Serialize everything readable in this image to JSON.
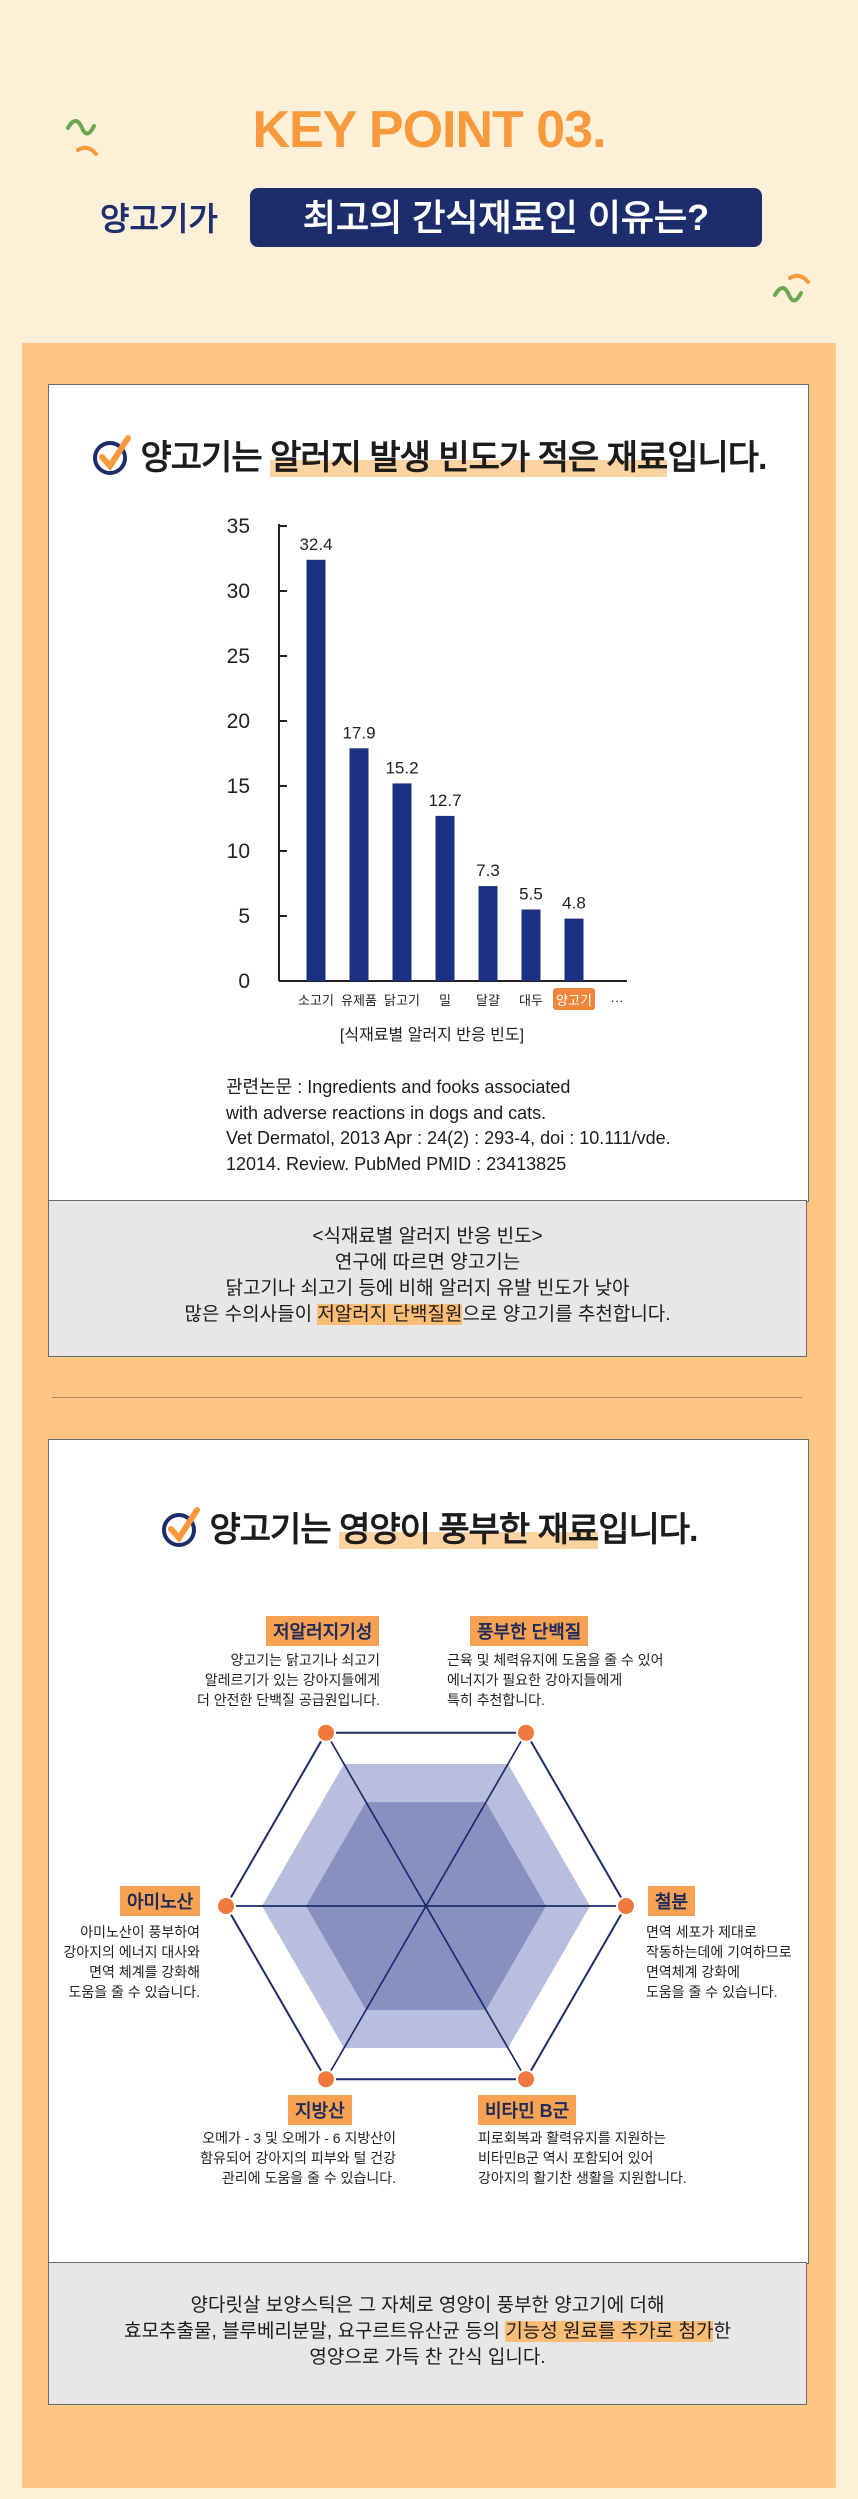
{
  "header": {
    "kicker": "KEY POINT 03.",
    "title_lead": "양고기가",
    "title_box": "최고의 간식재료인 이유는?"
  },
  "section1": {
    "title": [
      {
        "text": "양고기는 "
      },
      {
        "text": "알러지 발생 빈도가 적은 재료",
        "highlight": true
      },
      {
        "text": "입니다."
      }
    ],
    "reference": [
      "관련논문 : Ingredients and fooks associated",
      "with adverse reactions in dogs and cats.",
      "Vet Dermatol, 2013 Apr : 24(2) : 293-4, doi : 10.111/vde.",
      "12014. Review. PubMed PMID : 23413825"
    ],
    "summary": [
      [
        {
          "text": "<식재료별 알러지 반응 빈도>"
        }
      ],
      [
        {
          "text": "연구에 따르면 양고기는"
        }
      ],
      [
        {
          "text": "닭고기나 쇠고기 등에 비해 알러지 유발 빈도가 낮아"
        }
      ],
      [
        {
          "text": "많은 수의사들이 "
        },
        {
          "text": "저알러지 단백질원",
          "highlight": true
        },
        {
          "text": "으로 양고기를 추천합니다."
        }
      ]
    ]
  },
  "chart_data": {
    "type": "bar",
    "categories": [
      "소고기",
      "유제품",
      "닭고기",
      "밀",
      "달걀",
      "대두",
      "양고기",
      "···"
    ],
    "values": [
      32.4,
      17.9,
      15.2,
      12.7,
      7.3,
      5.5,
      4.8,
      null
    ],
    "color": "#1b3080",
    "highlight": 6,
    "highlight_color": "#f0853c",
    "xlabel": "[식재료별 알러지 반응 빈도]",
    "ylim": [
      0,
      35
    ],
    "yticks": [
      0,
      5,
      10,
      15,
      20,
      25,
      30,
      35
    ]
  },
  "section2": {
    "title": [
      {
        "text": "양고기는 "
      },
      {
        "text": "영양이 풍부한 재료",
        "highlight": true
      },
      {
        "text": "입니다."
      }
    ],
    "features": [
      {
        "label": "저알러지기성",
        "lines": [
          "양고기는 닭고기나 쇠고기",
          "알레르기가 있는 강아지들에게",
          "더 안전한 단백질 공급원입니다."
        ]
      },
      {
        "label": "풍부한 단백질",
        "lines": [
          "근육 및 체력유지에 도움을 줄 수 있어",
          "에너지가 필요한 강아지들에게",
          "특히 추천합니다."
        ]
      },
      {
        "label": "철분",
        "lines": [
          "면역 세포가 제대로",
          "작동하는데에 기여하므로",
          "면역체계 강화에",
          "도움을 줄 수 있습니다."
        ]
      },
      {
        "label": "비타민 B군",
        "lines": [
          "피로회복과 활력유지를 지원하는",
          "비타민B군 역시 포함되어 있어",
          "강아지의 활기찬 생활을 지원합니다."
        ]
      },
      {
        "label": "지방산",
        "lines": [
          "오메가 - 3 및 오메가 - 6 지방산이",
          "함유되어 강아지의 피부와 털 건강",
          "관리에 도움을 줄 수 있습니다."
        ]
      },
      {
        "label": "아미노산",
        "lines": [
          "아미노산이 풍부하여",
          "강아지의 에너지 대사와",
          "면역 체계를 강화해",
          "도움을 줄 수 있습니다."
        ]
      }
    ],
    "summary": [
      [
        {
          "text": "양다릿살 보양스틱은 그 자체로 영양이 풍부한 양고기에 더해"
        }
      ],
      [
        {
          "text": "효모추출물, 블루베리분말, 요구르트유산균 등의 "
        },
        {
          "text": "기능성 원료를 추가로 첨가",
          "highlight": true
        },
        {
          "text": "한"
        }
      ],
      [
        {
          "text": "영양으로 가득 찬 간식 입니다."
        }
      ]
    ]
  }
}
